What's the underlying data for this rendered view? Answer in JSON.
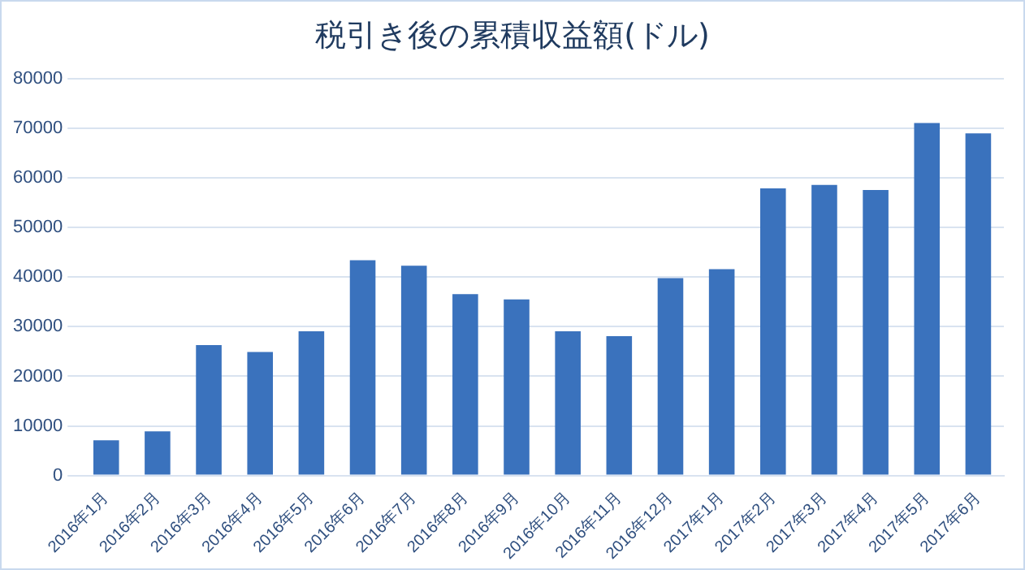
{
  "chart_data": {
    "type": "bar",
    "title": "税引き後の累積収益額(ドル)",
    "categories": [
      "2016年1月",
      "2016年2月",
      "2016年3月",
      "2016年4月",
      "2016年5月",
      "2016年6月",
      "2016年7月",
      "2016年8月",
      "2016年9月",
      "2016年10月",
      "2016年11月",
      "2016年12月",
      "2017年1月",
      "2017年2月",
      "2017年3月",
      "2017年4月",
      "2017年5月",
      "2017年6月"
    ],
    "values": [
      7100,
      8900,
      26300,
      24900,
      29100,
      43400,
      42300,
      36600,
      35500,
      29100,
      28100,
      39800,
      41600,
      57900,
      58600,
      57600,
      71100,
      69000
    ],
    "color": "#3a72bd",
    "ylim": [
      0,
      80000
    ],
    "yticks": [
      0,
      10000,
      20000,
      30000,
      40000,
      50000,
      60000,
      70000,
      80000
    ],
    "grid": "y"
  }
}
